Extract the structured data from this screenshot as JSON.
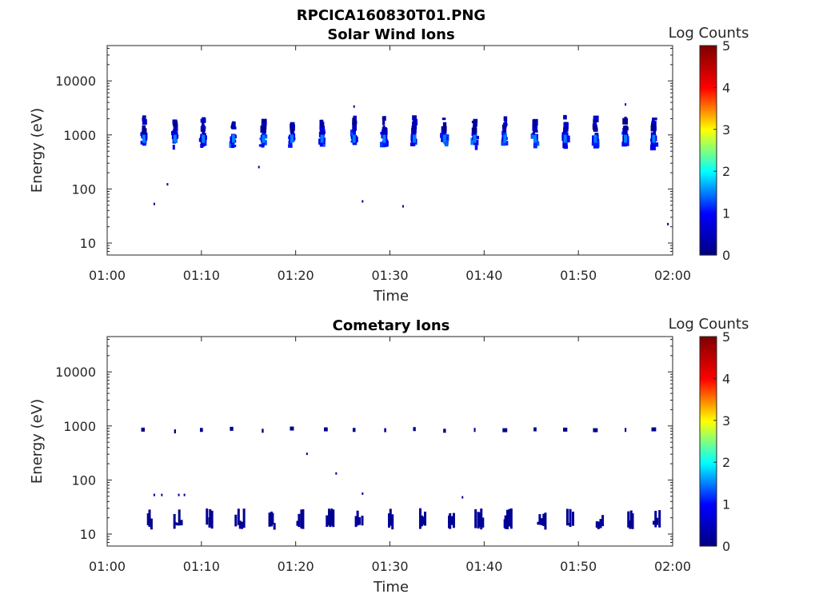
{
  "figure": {
    "main_title": "RPCICA160830T01.PNG"
  },
  "colormap": {
    "stops": [
      "#00007f",
      "#0000ff",
      "#00ffff",
      "#ffff00",
      "#ff0000",
      "#7f0000"
    ]
  },
  "chart_data": [
    {
      "type": "heatmap",
      "title": "Solar Wind Ions",
      "xlabel": "Time",
      "ylabel": "Energy (eV)",
      "x_tick_labels": [
        "01:00",
        "01:10",
        "01:20",
        "01:30",
        "01:40",
        "01:50",
        "02:00"
      ],
      "x_range_minutes": [
        0,
        60
      ],
      "y_scale": "log",
      "y_tick_labels": [
        "10",
        "100",
        "1000",
        "10000"
      ],
      "y_range": [
        6,
        45000
      ],
      "colorbar": {
        "label": "Log Counts",
        "tick_labels": [
          "0",
          "1",
          "2",
          "3",
          "4",
          "5"
        ],
        "range": [
          0,
          5
        ]
      },
      "sweep_minutes": [
        3.9,
        7.2,
        10.2,
        13.4,
        16.6,
        19.6,
        22.8,
        26.2,
        29.4,
        32.6,
        35.8,
        39.0,
        42.2,
        45.4,
        48.6,
        51.8,
        55.0,
        58.0
      ],
      "blobs": [
        {
          "e": 850,
          "c": 1.2,
          "t": 0.3
        },
        {
          "e": 750,
          "c": 1.0,
          "t": 0.25
        },
        {
          "e": 950,
          "c": 0.8,
          "t": 0.2
        },
        {
          "e": 1650,
          "c": 0.5,
          "t": 0.12
        },
        {
          "e": 1400,
          "c": 0.3,
          "t": 0.1
        }
      ],
      "specks": [
        {
          "t": 5.0,
          "e": 52
        },
        {
          "t": 6.4,
          "e": 120
        },
        {
          "t": 16.1,
          "e": 250
        },
        {
          "t": 26.2,
          "e": 3300
        },
        {
          "t": 27.1,
          "e": 58
        },
        {
          "t": 31.4,
          "e": 47
        },
        {
          "t": 55.0,
          "e": 3600
        },
        {
          "t": 59.5,
          "e": 22
        }
      ]
    },
    {
      "type": "heatmap",
      "title": "Cometary Ions",
      "xlabel": "Time",
      "ylabel": "Energy (eV)",
      "x_tick_labels": [
        "01:00",
        "01:10",
        "01:20",
        "01:30",
        "01:40",
        "01:50",
        "02:00"
      ],
      "x_range_minutes": [
        0,
        60
      ],
      "y_scale": "log",
      "y_tick_labels": [
        "10",
        "100",
        "1000",
        "10000"
      ],
      "y_range": [
        6,
        45000
      ],
      "colorbar": {
        "label": "Log Counts",
        "tick_labels": [
          "0",
          "1",
          "2",
          "3",
          "4",
          "5"
        ],
        "range": [
          0,
          5
        ]
      },
      "high_band": [
        {
          "t": 3.8,
          "e": 840
        },
        {
          "t": 7.2,
          "e": 780
        },
        {
          "t": 10.0,
          "e": 830
        },
        {
          "t": 13.2,
          "e": 870
        },
        {
          "t": 16.5,
          "e": 800
        },
        {
          "t": 19.6,
          "e": 880
        },
        {
          "t": 23.2,
          "e": 850
        },
        {
          "t": 26.2,
          "e": 830
        },
        {
          "t": 29.5,
          "e": 820
        },
        {
          "t": 32.6,
          "e": 860
        },
        {
          "t": 35.8,
          "e": 800
        },
        {
          "t": 39.0,
          "e": 830
        },
        {
          "t": 42.2,
          "e": 820
        },
        {
          "t": 45.4,
          "e": 850
        },
        {
          "t": 48.6,
          "e": 840
        },
        {
          "t": 51.8,
          "e": 820
        },
        {
          "t": 55.0,
          "e": 830
        },
        {
          "t": 58.0,
          "e": 850
        }
      ],
      "low_band": [
        {
          "t": 4.6,
          "w": 0.6
        },
        {
          "t": 7.6,
          "w": 0.9
        },
        {
          "t": 11.0,
          "w": 0.8
        },
        {
          "t": 14.2,
          "w": 1.0
        },
        {
          "t": 17.6,
          "w": 0.8
        },
        {
          "t": 20.6,
          "w": 0.8
        },
        {
          "t": 23.8,
          "w": 0.9
        },
        {
          "t": 26.8,
          "w": 0.8
        },
        {
          "t": 30.2,
          "w": 0.6
        },
        {
          "t": 33.6,
          "w": 0.8
        },
        {
          "t": 36.6,
          "w": 0.7
        },
        {
          "t": 39.6,
          "w": 0.9
        },
        {
          "t": 42.6,
          "w": 0.9
        },
        {
          "t": 46.2,
          "w": 1.0
        },
        {
          "t": 49.2,
          "w": 0.8
        },
        {
          "t": 52.4,
          "w": 0.8
        },
        {
          "t": 55.6,
          "w": 0.7
        },
        {
          "t": 58.4,
          "w": 0.8
        }
      ],
      "specks": [
        {
          "t": 5.0,
          "e": 52
        },
        {
          "t": 5.8,
          "e": 52
        },
        {
          "t": 7.6,
          "e": 52
        },
        {
          "t": 8.2,
          "e": 52
        },
        {
          "t": 21.2,
          "e": 300
        },
        {
          "t": 24.3,
          "e": 130
        },
        {
          "t": 27.1,
          "e": 55
        },
        {
          "t": 37.7,
          "e": 47
        }
      ]
    }
  ]
}
